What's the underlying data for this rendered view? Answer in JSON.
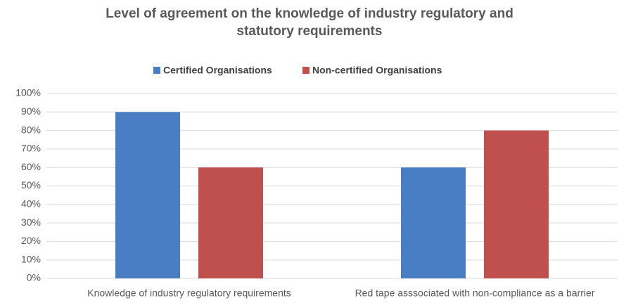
{
  "chart_data": {
    "type": "bar",
    "title": [
      "Level of agreement on the knowledge of industry regulatory and",
      "statutory requirements"
    ],
    "categories": [
      "Knowledge of industry regulatory requirements",
      "Red tape asssociated with non-compliance as a barrier"
    ],
    "series": [
      {
        "name": "Certified Organisations",
        "color": "#4a7ec4",
        "values": [
          90,
          60
        ]
      },
      {
        "name": "Non-certified Organisations",
        "color": "#c0504d",
        "values": [
          60,
          80
        ]
      }
    ],
    "ylim": [
      0,
      100
    ],
    "yticks": [
      {
        "value": 0,
        "label": "0%"
      },
      {
        "value": 10,
        "label": "10%"
      },
      {
        "value": 20,
        "label": "20%"
      },
      {
        "value": 30,
        "label": "30%"
      },
      {
        "value": 40,
        "label": "40%"
      },
      {
        "value": 50,
        "label": "50%"
      },
      {
        "value": 60,
        "label": "60%"
      },
      {
        "value": 70,
        "label": "70%"
      },
      {
        "value": 80,
        "label": "80%"
      },
      {
        "value": 90,
        "label": "90%"
      },
      {
        "value": 100,
        "label": "100%"
      }
    ],
    "grid": true,
    "legend": "top"
  }
}
